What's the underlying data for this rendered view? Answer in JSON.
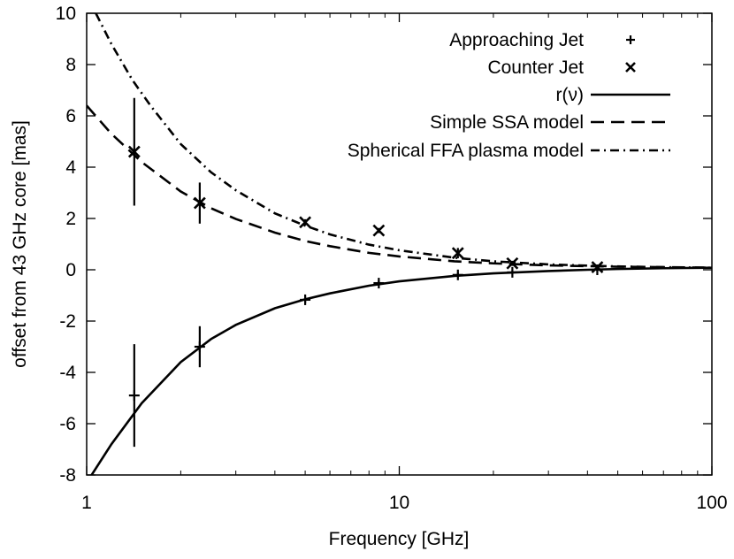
{
  "chart_data": {
    "type": "scatter",
    "xlabel": "Frequency   [GHz]",
    "ylabel": "offset from 43 GHz core   [mas]",
    "xscale": "log",
    "xlim": [
      1,
      100
    ],
    "ylim": [
      -8,
      10
    ],
    "x_ticks": [
      1,
      10,
      100
    ],
    "x_tick_labels": [
      "1",
      "10",
      "100"
    ],
    "y_ticks": [
      -8,
      -6,
      -4,
      -2,
      0,
      2,
      4,
      6,
      8,
      10
    ],
    "y_tick_labels": [
      "-8",
      "-6",
      "-4",
      "-2",
      "0",
      "2",
      "4",
      "6",
      "8",
      "10"
    ],
    "legend_position": "top-right",
    "series": [
      {
        "name": "Approaching Jet",
        "kind": "points",
        "marker": "plus",
        "x": [
          1.42,
          2.3,
          5.0,
          8.6,
          15.4,
          23.0,
          43.0
        ],
        "y": [
          -4.9,
          -3.0,
          -1.17,
          -0.52,
          -0.2,
          -0.1,
          0.0
        ],
        "yerr": [
          2.0,
          0.8,
          0.12,
          0.1,
          0.08,
          0.06,
          0.05
        ]
      },
      {
        "name": "Counter Jet",
        "kind": "points",
        "marker": "cross",
        "x": [
          1.42,
          2.3,
          5.0,
          8.6,
          15.4,
          23.0,
          43.0
        ],
        "y": [
          4.6,
          2.6,
          1.85,
          1.53,
          0.65,
          0.25,
          0.1
        ],
        "yerr": [
          2.1,
          0.8,
          0.12,
          0.1,
          0.2,
          0.1,
          0.05
        ]
      },
      {
        "name": "r(ν)",
        "kind": "line",
        "style": "solid",
        "x": [
          1.0,
          1.2,
          1.5,
          2.0,
          2.5,
          3.0,
          4.0,
          5.0,
          6.0,
          8.0,
          10.0,
          15.0,
          20.0,
          30.0,
          40.0,
          50.0,
          70.0,
          100.0
        ],
        "y": [
          -8.3,
          -6.8,
          -5.2,
          -3.6,
          -2.7,
          -2.15,
          -1.5,
          -1.15,
          -0.92,
          -0.62,
          -0.45,
          -0.24,
          -0.14,
          -0.05,
          0.0,
          0.03,
          0.06,
          0.08
        ]
      },
      {
        "name": "Simple SSA model",
        "kind": "line",
        "style": "dashed",
        "x": [
          1.0,
          1.2,
          1.5,
          2.0,
          2.5,
          3.0,
          4.0,
          5.0,
          6.0,
          8.0,
          10.0,
          15.0,
          20.0,
          30.0,
          40.0,
          50.0,
          70.0,
          100.0
        ],
        "y": [
          6.4,
          5.3,
          4.2,
          3.05,
          2.4,
          1.98,
          1.45,
          1.12,
          0.92,
          0.66,
          0.52,
          0.33,
          0.25,
          0.17,
          0.14,
          0.12,
          0.1,
          0.08
        ]
      },
      {
        "name": "Spherical FFA plasma model",
        "kind": "line",
        "style": "dash-dot",
        "x": [
          1.07,
          1.2,
          1.4,
          1.6,
          2.0,
          2.5,
          3.0,
          4.0,
          5.0,
          6.0,
          8.0,
          10.0,
          15.0,
          20.0,
          30.0,
          40.0,
          50.0,
          70.0,
          100.0
        ],
        "y": [
          10.0,
          8.8,
          7.4,
          6.4,
          4.9,
          3.8,
          3.1,
          2.2,
          1.72,
          1.38,
          0.98,
          0.76,
          0.47,
          0.33,
          0.21,
          0.16,
          0.13,
          0.1,
          0.08
        ]
      }
    ]
  }
}
